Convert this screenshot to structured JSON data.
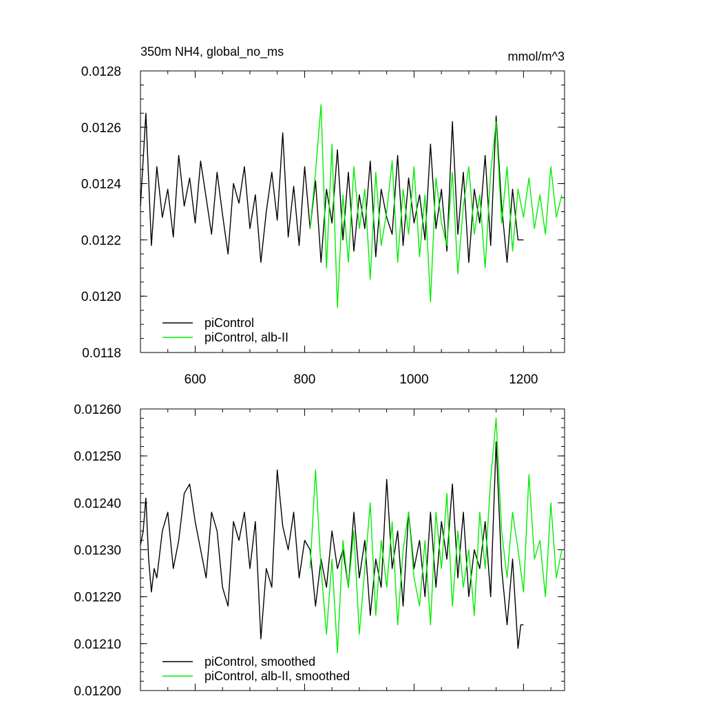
{
  "colors": {
    "black": "#000000",
    "green": "#00ee00"
  },
  "header": {
    "title": "350m NH4, global_no_ms",
    "units": "mmol/m^3"
  },
  "chart_data": [
    {
      "type": "line",
      "title": "350m NH4, global_no_ms",
      "units": "mmol/m^3",
      "xlim": [
        500,
        1275
      ],
      "ylim": [
        0.0118,
        0.0128
      ],
      "x_ticks": [
        600,
        800,
        1000,
        1200
      ],
      "x_tick_labels": [
        "600",
        "800",
        "1000",
        "1200"
      ],
      "y_ticks": [
        0.0118,
        0.012,
        0.0122,
        0.0124,
        0.0126,
        0.0128
      ],
      "y_tick_labels": [
        "0.0118",
        "0.0120",
        "0.0122",
        "0.0124",
        "0.0126",
        "0.0128"
      ],
      "legend": {
        "position": "bottom-left",
        "entries": [
          "piControl",
          "piControl, alb-II"
        ]
      },
      "series": [
        {
          "name": "piControl",
          "color": "#000000",
          "x": [
            500,
            510,
            520,
            530,
            540,
            550,
            560,
            570,
            580,
            590,
            600,
            610,
            620,
            630,
            640,
            650,
            660,
            670,
            680,
            690,
            700,
            710,
            720,
            730,
            740,
            750,
            760,
            770,
            780,
            790,
            800,
            810,
            820,
            830,
            840,
            850,
            860,
            870,
            880,
            890,
            900,
            910,
            920,
            930,
            940,
            950,
            960,
            970,
            980,
            990,
            1000,
            1010,
            1020,
            1030,
            1040,
            1050,
            1060,
            1070,
            1080,
            1090,
            1100,
            1110,
            1120,
            1130,
            1140,
            1150,
            1160,
            1170,
            1180,
            1190,
            1200
          ],
          "y": [
            0.01232,
            0.01265,
            0.01218,
            0.01246,
            0.01228,
            0.01238,
            0.01221,
            0.0125,
            0.01232,
            0.01242,
            0.01226,
            0.01248,
            0.01235,
            0.01222,
            0.01244,
            0.01229,
            0.01215,
            0.0124,
            0.01233,
            0.01246,
            0.01224,
            0.01236,
            0.01212,
            0.0123,
            0.01244,
            0.01227,
            0.01258,
            0.01221,
            0.01239,
            0.01218,
            0.01246,
            0.01224,
            0.01241,
            0.01212,
            0.01238,
            0.01226,
            0.01252,
            0.0122,
            0.01244,
            0.01216,
            0.01236,
            0.01224,
            0.01248,
            0.01214,
            0.01238,
            0.01228,
            0.01222,
            0.0125,
            0.01218,
            0.01242,
            0.01226,
            0.01236,
            0.0122,
            0.01254,
            0.01224,
            0.01238,
            0.01216,
            0.01262,
            0.01222,
            0.01244,
            0.01212,
            0.01238,
            0.01226,
            0.0125,
            0.01218,
            0.01264,
            0.01232,
            0.01212,
            0.01238,
            0.0122,
            0.0122
          ]
        },
        {
          "name": "piControl, alb-II",
          "color": "#00ee00",
          "x": [
            810,
            820,
            830,
            840,
            850,
            860,
            870,
            880,
            890,
            900,
            910,
            920,
            930,
            940,
            950,
            960,
            970,
            980,
            990,
            1000,
            1010,
            1020,
            1030,
            1040,
            1050,
            1060,
            1070,
            1080,
            1090,
            1100,
            1110,
            1120,
            1130,
            1140,
            1150,
            1160,
            1170,
            1180,
            1190,
            1200,
            1210,
            1220,
            1230,
            1240,
            1250,
            1260,
            1270
          ],
          "y": [
            0.01224,
            0.01244,
            0.01268,
            0.0121,
            0.01254,
            0.01196,
            0.01236,
            0.01212,
            0.01246,
            0.01224,
            0.01238,
            0.01206,
            0.01244,
            0.01218,
            0.0123,
            0.01248,
            0.01212,
            0.01238,
            0.01222,
            0.01246,
            0.01214,
            0.01236,
            0.01198,
            0.01242,
            0.01226,
            0.01218,
            0.01244,
            0.01208,
            0.01232,
            0.01246,
            0.01222,
            0.01236,
            0.0121,
            0.01244,
            0.01262,
            0.01226,
            0.01246,
            0.01216,
            0.01238,
            0.01228,
            0.01242,
            0.01224,
            0.01236,
            0.01222,
            0.01246,
            0.01228,
            0.01236
          ]
        }
      ]
    },
    {
      "type": "line",
      "xlim": [
        500,
        1275
      ],
      "ylim": [
        0.012,
        0.0126
      ],
      "x_ticks": [
        600,
        800,
        1000,
        1200
      ],
      "y_ticks": [
        0.012,
        0.0121,
        0.0122,
        0.0123,
        0.0124,
        0.0125,
        0.0126
      ],
      "y_tick_labels": [
        "0.01200",
        "0.01210",
        "0.01220",
        "0.01230",
        "0.01240",
        "0.01250",
        "0.01260"
      ],
      "legend": {
        "position": "bottom-left",
        "entries": [
          "piControl, smoothed",
          "piControl, alb-II, smoothed"
        ]
      },
      "series": [
        {
          "name": "piControl, smoothed",
          "color": "#000000",
          "x": [
            500,
            505,
            510,
            515,
            520,
            525,
            530,
            540,
            550,
            560,
            570,
            580,
            590,
            600,
            610,
            620,
            630,
            640,
            650,
            660,
            670,
            680,
            690,
            700,
            710,
            720,
            730,
            740,
            750,
            760,
            770,
            780,
            790,
            800,
            810,
            820,
            830,
            840,
            850,
            860,
            870,
            880,
            890,
            900,
            910,
            920,
            930,
            940,
            950,
            960,
            970,
            980,
            990,
            1000,
            1010,
            1020,
            1030,
            1040,
            1050,
            1060,
            1070,
            1080,
            1090,
            1100,
            1110,
            1120,
            1130,
            1140,
            1150,
            1160,
            1170,
            1180,
            1190,
            1195,
            1200
          ],
          "y": [
            0.01231,
            0.01234,
            0.01241,
            0.01228,
            0.01221,
            0.01226,
            0.01224,
            0.01234,
            0.01238,
            0.01226,
            0.01232,
            0.01242,
            0.01244,
            0.01236,
            0.0123,
            0.01224,
            0.01238,
            0.01234,
            0.01222,
            0.01218,
            0.01236,
            0.01232,
            0.01238,
            0.01226,
            0.01236,
            0.01211,
            0.01226,
            0.01222,
            0.01247,
            0.01235,
            0.0123,
            0.01238,
            0.01224,
            0.01232,
            0.0123,
            0.01218,
            0.01228,
            0.01222,
            0.01234,
            0.01226,
            0.0123,
            0.01222,
            0.01238,
            0.01224,
            0.01232,
            0.01216,
            0.01228,
            0.01222,
            0.01245,
            0.01226,
            0.01234,
            0.01218,
            0.01238,
            0.01226,
            0.01232,
            0.0122,
            0.01238,
            0.01222,
            0.01236,
            0.01228,
            0.01244,
            0.01224,
            0.01238,
            0.0122,
            0.0123,
            0.01226,
            0.01236,
            0.0122,
            0.01253,
            0.01226,
            0.01214,
            0.01228,
            0.01209,
            0.01214,
            0.01214
          ]
        },
        {
          "name": "piControl, alb-II, smoothed",
          "color": "#00ee00",
          "x": [
            810,
            820,
            830,
            840,
            850,
            860,
            870,
            880,
            890,
            900,
            910,
            920,
            930,
            940,
            950,
            960,
            970,
            980,
            990,
            1000,
            1010,
            1020,
            1030,
            1040,
            1050,
            1060,
            1070,
            1080,
            1090,
            1100,
            1110,
            1120,
            1130,
            1140,
            1150,
            1160,
            1170,
            1180,
            1190,
            1200,
            1210,
            1220,
            1230,
            1240,
            1250,
            1260,
            1270
          ],
          "y": [
            0.01226,
            0.01247,
            0.01226,
            0.01212,
            0.01228,
            0.01208,
            0.01232,
            0.01222,
            0.01234,
            0.01212,
            0.01226,
            0.0124,
            0.01216,
            0.01232,
            0.01222,
            0.01236,
            0.01214,
            0.0123,
            0.01238,
            0.01224,
            0.01218,
            0.01232,
            0.01214,
            0.01238,
            0.01226,
            0.01242,
            0.01218,
            0.01234,
            0.01222,
            0.0123,
            0.01216,
            0.01238,
            0.01226,
            0.01245,
            0.01258,
            0.01234,
            0.01224,
            0.01238,
            0.0123,
            0.01221,
            0.01246,
            0.01228,
            0.01232,
            0.0122,
            0.0124,
            0.01224,
            0.0123
          ]
        }
      ]
    }
  ]
}
